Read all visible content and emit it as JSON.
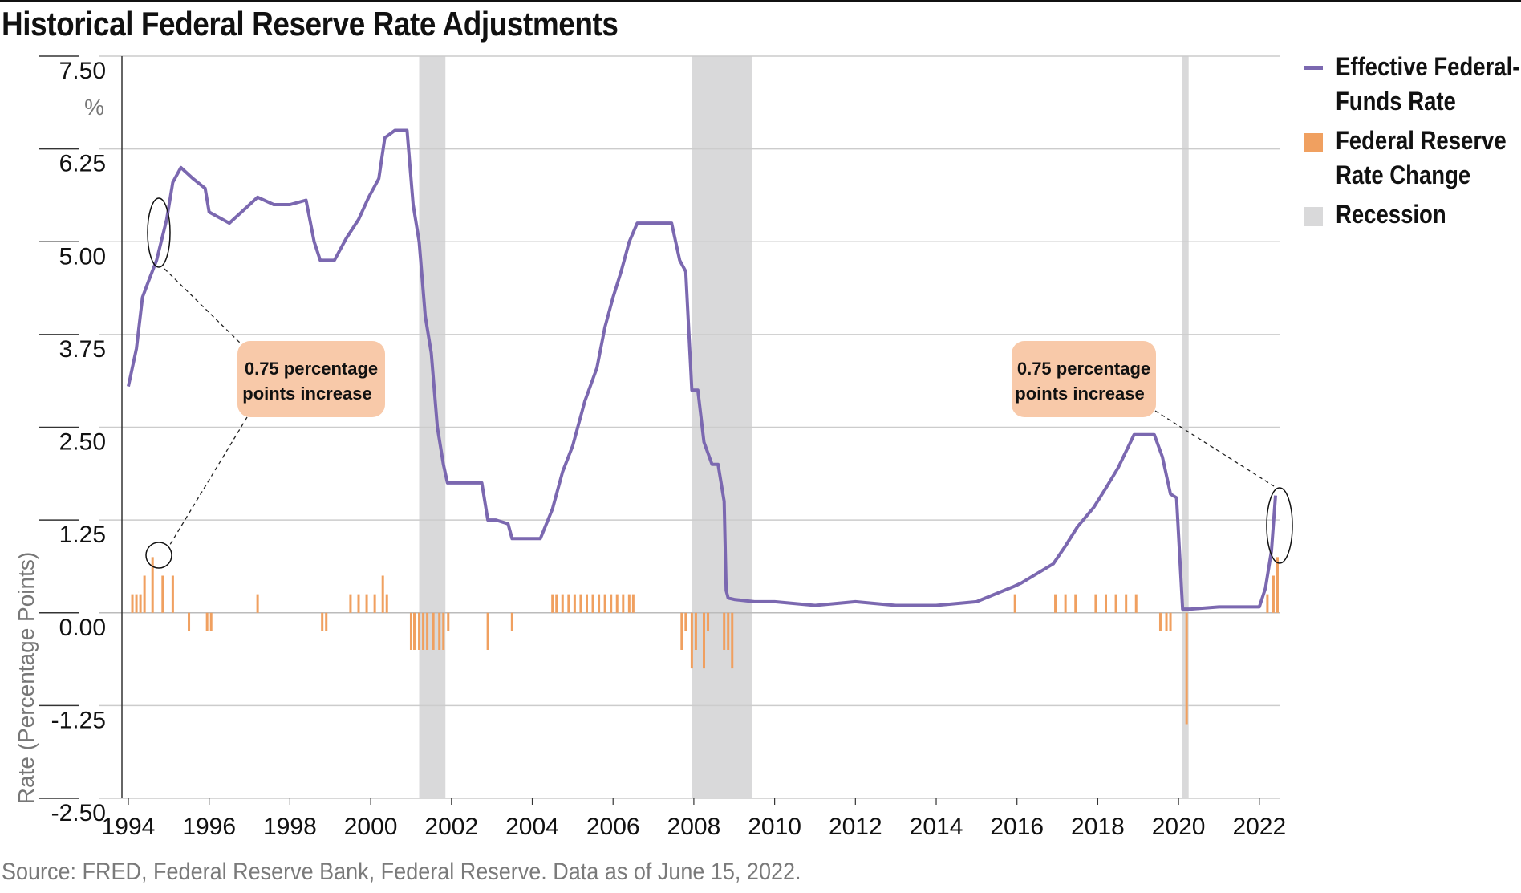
{
  "title": "Historical Federal Reserve Rate Adjustments",
  "source": "Source: FRED, Federal Reserve Bank, Federal Reserve. Data as of June 15, 2022.",
  "legend": {
    "series1": "Effective Federal-Funds Rate",
    "series2": "Federal Reserve Rate Change",
    "recession": "Recession"
  },
  "colors": {
    "line": "#7b68b0",
    "bars": "#f0a060",
    "recession": "#d9d9da",
    "grid": "#cccccc",
    "callout_bg": "#f8c9a9"
  },
  "annotations": [
    {
      "text_line1": "0.75 percentage",
      "text_line2": "points increase"
    },
    {
      "text_line1": "0.75 percentage",
      "text_line2": "points increase"
    }
  ],
  "chart_data": {
    "type": "line",
    "ylabel": "Rate (Percentage Points)",
    "y_unit": "%",
    "ylim": [
      -2.5,
      7.5
    ],
    "y_ticks": [
      "7.50",
      "6.25",
      "5.00",
      "3.75",
      "2.50",
      "1.25",
      "0.00",
      "-1.25",
      "-2.50"
    ],
    "xlim": [
      1994,
      2022.5
    ],
    "x_ticks": [
      "1994",
      "1996",
      "1998",
      "2000",
      "2002",
      "2004",
      "2006",
      "2008",
      "2010",
      "2012",
      "2014",
      "2016",
      "2018",
      "2020",
      "2022"
    ],
    "recessions": [
      [
        2001.2,
        2001.85
      ],
      [
        2007.95,
        2009.45
      ],
      [
        2020.08,
        2020.25
      ]
    ],
    "series": [
      {
        "name": "Effective Federal-Funds Rate",
        "x": [
          1994.0,
          1994.2,
          1994.35,
          1994.5,
          1994.7,
          1994.95,
          1995.1,
          1995.3,
          1995.6,
          1995.9,
          1996.0,
          1996.5,
          1997.0,
          1997.2,
          1997.6,
          1998.0,
          1998.4,
          1998.6,
          1998.75,
          1998.9,
          1999.1,
          1999.4,
          1999.7,
          1999.95,
          2000.2,
          2000.35,
          2000.6,
          2000.9,
          2001.05,
          2001.2,
          2001.35,
          2001.5,
          2001.65,
          2001.8,
          2001.9,
          2002.0,
          2002.5,
          2002.75,
          2002.9,
          2003.1,
          2003.4,
          2003.5,
          2003.9,
          2004.2,
          2004.5,
          2004.75,
          2005.0,
          2005.3,
          2005.6,
          2005.8,
          2006.0,
          2006.2,
          2006.4,
          2006.6,
          2006.9,
          2007.15,
          2007.45,
          2007.65,
          2007.8,
          2007.95,
          2008.1,
          2008.25,
          2008.45,
          2008.6,
          2008.75,
          2008.8,
          2008.85,
          2009.0,
          2009.5,
          2010.0,
          2011.0,
          2012.0,
          2013.0,
          2014.0,
          2015.0,
          2015.9,
          2016.1,
          2016.9,
          2017.2,
          2017.5,
          2017.9,
          2018.2,
          2018.5,
          2018.9,
          2019.1,
          2019.4,
          2019.6,
          2019.8,
          2019.95,
          2020.1,
          2020.3,
          2021.0,
          2021.5,
          2022.0,
          2022.15,
          2022.3,
          2022.4
        ],
        "values": [
          3.05,
          3.56,
          4.25,
          4.47,
          4.75,
          5.3,
          5.8,
          6.0,
          5.85,
          5.72,
          5.4,
          5.25,
          5.5,
          5.6,
          5.5,
          5.5,
          5.56,
          5.0,
          4.75,
          4.75,
          4.75,
          5.05,
          5.3,
          5.6,
          5.85,
          6.4,
          6.5,
          6.5,
          5.5,
          5.0,
          4.0,
          3.5,
          2.5,
          2.0,
          1.75,
          1.75,
          1.75,
          1.75,
          1.25,
          1.25,
          1.2,
          1.0,
          1.0,
          1.0,
          1.4,
          1.9,
          2.25,
          2.85,
          3.3,
          3.85,
          4.25,
          4.6,
          5.0,
          5.25,
          5.25,
          5.25,
          5.25,
          4.75,
          4.6,
          3.0,
          3.0,
          2.3,
          2.0,
          2.0,
          1.5,
          0.3,
          0.2,
          0.18,
          0.15,
          0.15,
          0.1,
          0.15,
          0.1,
          0.1,
          0.15,
          0.35,
          0.4,
          0.66,
          0.9,
          1.16,
          1.42,
          1.68,
          1.95,
          2.4,
          2.4,
          2.4,
          2.1,
          1.6,
          1.55,
          0.05,
          0.05,
          0.08,
          0.08,
          0.08,
          0.33,
          0.83,
          1.58
        ]
      },
      {
        "name": "Federal Reserve Rate Change",
        "x": [
          1994.1,
          1994.2,
          1994.3,
          1994.4,
          1994.6,
          1994.85,
          1995.1,
          1995.5,
          1995.95,
          1996.05,
          1997.2,
          1998.8,
          1998.9,
          1999.5,
          1999.7,
          1999.9,
          2000.1,
          2000.3,
          2000.4,
          2001.0,
          2001.08,
          2001.2,
          2001.3,
          2001.4,
          2001.55,
          2001.7,
          2001.8,
          2001.92,
          2002.9,
          2003.5,
          2004.5,
          2004.6,
          2004.75,
          2004.9,
          2005.05,
          2005.2,
          2005.35,
          2005.5,
          2005.65,
          2005.8,
          2005.95,
          2006.1,
          2006.25,
          2006.4,
          2006.5,
          2007.7,
          2007.8,
          2007.95,
          2008.05,
          2008.25,
          2008.35,
          2008.75,
          2008.85,
          2008.95,
          2015.95,
          2016.95,
          2017.2,
          2017.45,
          2017.95,
          2018.2,
          2018.45,
          2018.7,
          2018.95,
          2019.55,
          2019.7,
          2019.8,
          2020.2,
          2022.2,
          2022.35,
          2022.45
        ],
        "values": [
          0.25,
          0.25,
          0.25,
          0.5,
          0.75,
          0.5,
          0.5,
          -0.25,
          -0.25,
          -0.25,
          0.25,
          -0.25,
          -0.25,
          0.25,
          0.25,
          0.25,
          0.25,
          0.5,
          0.25,
          -0.5,
          -0.5,
          -0.5,
          -0.5,
          -0.5,
          -0.5,
          -0.5,
          -0.5,
          -0.25,
          -0.5,
          -0.25,
          0.25,
          0.25,
          0.25,
          0.25,
          0.25,
          0.25,
          0.25,
          0.25,
          0.25,
          0.25,
          0.25,
          0.25,
          0.25,
          0.25,
          0.25,
          -0.5,
          -0.25,
          -0.75,
          -0.5,
          -0.75,
          -0.25,
          -0.5,
          -0.5,
          -0.75,
          0.25,
          0.25,
          0.25,
          0.25,
          0.25,
          0.25,
          0.25,
          0.25,
          0.25,
          -0.25,
          -0.25,
          -0.25,
          -1.5,
          0.25,
          0.5,
          0.75
        ]
      }
    ]
  }
}
